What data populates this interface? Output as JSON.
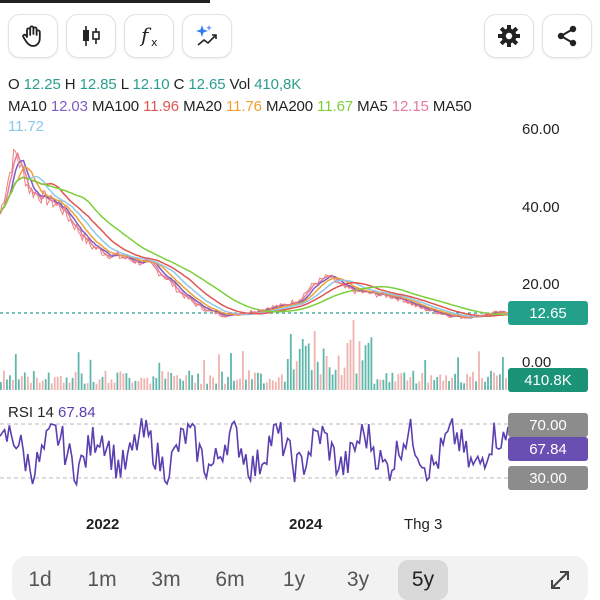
{
  "toolbar": {
    "hand_icon": "hand-icon",
    "candles_icon": "candlestick-icon",
    "fx_label": "f",
    "fx_sub": "x",
    "ai_icon": "sparkle-chart-icon",
    "settings_icon": "gear-icon",
    "share_icon": "share-icon"
  },
  "ohlc": {
    "o_label": "O",
    "o_value": "12.25",
    "h_label": "H",
    "h_value": "12.85",
    "l_label": "L",
    "l_value": "12.10",
    "c_label": "C",
    "c_value": "12.65",
    "vol_label": "Vol",
    "vol_value": "410,8K"
  },
  "ma": {
    "ma10_label": "MA10",
    "ma10_value": "12.03",
    "ma100_label": "MA100",
    "ma100_value": "11.96",
    "ma20_label": "MA20",
    "ma20_value": "11.76",
    "ma200_label": "MA200",
    "ma200_value": "11.67",
    "ma5_label": "MA5",
    "ma5_value": "12.15",
    "ma50_label": "MA50",
    "ma50_value": "11.72"
  },
  "colors": {
    "teal": "#2a9d8f",
    "ma10": "#7c5cbf",
    "ma100": "#e0554f",
    "ma20": "#f0a030",
    "ma200": "#7ccf3a",
    "ma5": "#e77ba0",
    "ma50": "#8cc8ee",
    "rsi": "#5b3fb0",
    "vol_up": "#2a9d8f",
    "vol_down": "#e89a94"
  },
  "price_axis": {
    "t60": "60.00",
    "t40": "40.00",
    "t20": "20.00",
    "t0": "0.00"
  },
  "price_badge": "12.65",
  "vol_badge": "410.8K",
  "rsi": {
    "title_label": "RSI 14",
    "title_value": "67.84",
    "badge_70": "70.00",
    "badge_value": "67.84",
    "badge_30": "30.00"
  },
  "x_axis": {
    "l2022": "2022",
    "l2024": "2024",
    "lthg3": "Thg 3"
  },
  "ranges": [
    "1d",
    "1m",
    "3m",
    "6m",
    "1y",
    "3y",
    "5y"
  ],
  "active_range": "5y",
  "expand_icon": "expand-arrows-icon",
  "chart_data": {
    "type": "line",
    "ylim": [
      0,
      60
    ],
    "price_series_approx": [
      38,
      54,
      44,
      42,
      40,
      35,
      30,
      28,
      27,
      26,
      25,
      22,
      18,
      15,
      13,
      12,
      12.5,
      13,
      14,
      14.5,
      16,
      20,
      22,
      19,
      18,
      17.5,
      17,
      16,
      14,
      13,
      12,
      11.5,
      12,
      12.5,
      12.65
    ],
    "last": {
      "open": 12.25,
      "high": 12.85,
      "low": 12.1,
      "close": 12.65,
      "volume": "410,8K"
    },
    "moving_averages": {
      "MA5": 12.15,
      "MA10": 12.03,
      "MA20": 11.76,
      "MA50": 11.72,
      "MA100": 11.96,
      "MA200": 11.67
    },
    "rsi14": 67.84,
    "rsi_levels": [
      30,
      70
    ],
    "x_ticks": [
      "2022",
      "2024",
      "Thg 3"
    ]
  }
}
